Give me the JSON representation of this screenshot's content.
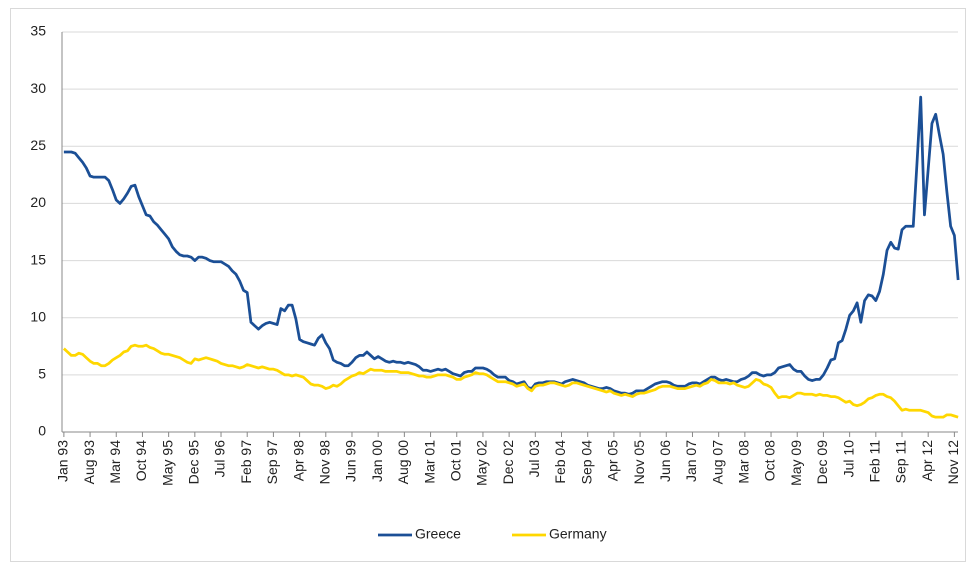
{
  "chart_data": {
    "type": "line",
    "categories": [
      "Jan 93",
      null,
      null,
      null,
      null,
      null,
      null,
      "Aug 93",
      null,
      null,
      null,
      null,
      null,
      null,
      "Mar 94",
      null,
      null,
      null,
      null,
      null,
      null,
      "Oct 94",
      null,
      null,
      null,
      null,
      null,
      null,
      "May 95",
      null,
      null,
      null,
      null,
      null,
      null,
      "Dec 95",
      null,
      null,
      null,
      null,
      null,
      null,
      "Jul 96",
      null,
      null,
      null,
      null,
      null,
      null,
      "Feb 97",
      null,
      null,
      null,
      null,
      null,
      null,
      "Sep 97",
      null,
      null,
      null,
      null,
      null,
      null,
      "Apr 98",
      null,
      null,
      null,
      null,
      null,
      null,
      "Nov 98",
      null,
      null,
      null,
      null,
      null,
      null,
      "Jun 99",
      null,
      null,
      null,
      null,
      null,
      null,
      "Jan 00",
      null,
      null,
      null,
      null,
      null,
      null,
      "Aug 00",
      null,
      null,
      null,
      null,
      null,
      null,
      "Mar 01",
      null,
      null,
      null,
      null,
      null,
      null,
      "Oct 01",
      null,
      null,
      null,
      null,
      null,
      null,
      "May 02",
      null,
      null,
      null,
      null,
      null,
      null,
      "Dec 02",
      null,
      null,
      null,
      null,
      null,
      null,
      "Jul 03",
      null,
      null,
      null,
      null,
      null,
      null,
      "Feb 04",
      null,
      null,
      null,
      null,
      null,
      null,
      "Sep 04",
      null,
      null,
      null,
      null,
      null,
      null,
      "Apr 05",
      null,
      null,
      null,
      null,
      null,
      null,
      "Nov 05",
      null,
      null,
      null,
      null,
      null,
      null,
      "Jun 06",
      null,
      null,
      null,
      null,
      null,
      null,
      "Jan 07",
      null,
      null,
      null,
      null,
      null,
      null,
      "Aug 07",
      null,
      null,
      null,
      null,
      null,
      null,
      "Mar 08",
      null,
      null,
      null,
      null,
      null,
      null,
      "Oct 08",
      null,
      null,
      null,
      null,
      null,
      null,
      "May 09",
      null,
      null,
      null,
      null,
      null,
      null,
      "Dec 09",
      null,
      null,
      null,
      null,
      null,
      null,
      "Jul 10",
      null,
      null,
      null,
      null,
      null,
      null,
      "Feb 11",
      null,
      null,
      null,
      null,
      null,
      null,
      "Sep 11",
      null,
      null,
      null,
      null,
      null,
      null,
      "Apr 12",
      null,
      null,
      null,
      null,
      null,
      null,
      "Nov 12",
      null
    ],
    "series": [
      {
        "name": "Greece",
        "color": "#1b4f96",
        "values": [
          24.5,
          24.5,
          24.5,
          24.4,
          24.0,
          23.6,
          23.1,
          22.4,
          22.3,
          22.3,
          22.3,
          22.3,
          22.0,
          21.2,
          20.3,
          20.0,
          20.4,
          20.9,
          21.5,
          21.6,
          20.6,
          19.8,
          19.0,
          18.9,
          18.4,
          18.1,
          17.7,
          17.3,
          16.9,
          16.2,
          15.8,
          15.5,
          15.4,
          15.4,
          15.3,
          15.0,
          15.3,
          15.3,
          15.2,
          15.0,
          14.9,
          14.9,
          14.9,
          14.7,
          14.5,
          14.1,
          13.8,
          13.2,
          12.4,
          12.2,
          9.6,
          9.3,
          9.0,
          9.3,
          9.5,
          9.6,
          9.5,
          9.4,
          10.8,
          10.6,
          11.1,
          11.1,
          9.9,
          8.1,
          7.9,
          7.8,
          7.7,
          7.6,
          8.2,
          8.5,
          7.8,
          7.3,
          6.3,
          6.1,
          6.0,
          5.8,
          5.8,
          6.1,
          6.5,
          6.7,
          6.7,
          7.0,
          6.7,
          6.4,
          6.6,
          6.4,
          6.2,
          6.1,
          6.2,
          6.1,
          6.1,
          6.0,
          6.1,
          6.0,
          5.9,
          5.7,
          5.4,
          5.4,
          5.3,
          5.4,
          5.5,
          5.4,
          5.5,
          5.3,
          5.1,
          5.0,
          4.9,
          5.2,
          5.3,
          5.3,
          5.6,
          5.6,
          5.6,
          5.5,
          5.3,
          5.0,
          4.8,
          4.8,
          4.8,
          4.5,
          4.4,
          4.2,
          4.3,
          4.4,
          3.9,
          3.8,
          4.2,
          4.3,
          4.3,
          4.4,
          4.4,
          4.4,
          4.3,
          4.2,
          4.4,
          4.5,
          4.6,
          4.5,
          4.4,
          4.3,
          4.1,
          4.0,
          3.9,
          3.8,
          3.8,
          3.9,
          3.8,
          3.6,
          3.5,
          3.4,
          3.4,
          3.3,
          3.4,
          3.6,
          3.6,
          3.6,
          3.8,
          4.0,
          4.2,
          4.3,
          4.4,
          4.4,
          4.3,
          4.1,
          4.0,
          4.0,
          4.0,
          4.2,
          4.3,
          4.3,
          4.2,
          4.4,
          4.6,
          4.8,
          4.8,
          4.6,
          4.5,
          4.6,
          4.5,
          4.4,
          4.4,
          4.6,
          4.7,
          4.9,
          5.2,
          5.2,
          5.0,
          4.9,
          5.0,
          5.0,
          5.2,
          5.6,
          5.7,
          5.8,
          5.9,
          5.5,
          5.3,
          5.3,
          4.9,
          4.6,
          4.5,
          4.6,
          4.6,
          5.0,
          5.6,
          6.3,
          6.4,
          7.8,
          8.0,
          9.0,
          10.2,
          10.6,
          11.3,
          9.6,
          11.5,
          12.0,
          11.9,
          11.5,
          12.3,
          13.8,
          15.9,
          16.6,
          16.1,
          16.0,
          17.7,
          18.0,
          18.0,
          18.0,
          23.5,
          29.3,
          19.0,
          23.0,
          27.0,
          27.8,
          26.0,
          24.3,
          21.0,
          18.0,
          17.2,
          13.3
        ]
      },
      {
        "name": "Germany",
        "color": "#ffd700",
        "values": [
          7.3,
          7.0,
          6.7,
          6.7,
          6.9,
          6.8,
          6.5,
          6.2,
          6.0,
          6.0,
          5.8,
          5.8,
          6.0,
          6.3,
          6.5,
          6.7,
          7.0,
          7.1,
          7.5,
          7.6,
          7.5,
          7.5,
          7.6,
          7.4,
          7.3,
          7.1,
          6.9,
          6.8,
          6.8,
          6.7,
          6.6,
          6.5,
          6.3,
          6.1,
          6.0,
          6.4,
          6.3,
          6.4,
          6.5,
          6.4,
          6.3,
          6.2,
          6.0,
          5.9,
          5.8,
          5.8,
          5.7,
          5.6,
          5.7,
          5.9,
          5.8,
          5.7,
          5.6,
          5.7,
          5.6,
          5.5,
          5.5,
          5.4,
          5.2,
          5.0,
          5.0,
          4.9,
          5.0,
          4.9,
          4.8,
          4.5,
          4.2,
          4.1,
          4.1,
          4.0,
          3.8,
          3.9,
          4.1,
          4.0,
          4.2,
          4.5,
          4.7,
          4.9,
          5.0,
          5.2,
          5.1,
          5.3,
          5.5,
          5.4,
          5.4,
          5.4,
          5.3,
          5.3,
          5.3,
          5.3,
          5.2,
          5.2,
          5.2,
          5.1,
          5.0,
          4.9,
          4.9,
          4.8,
          4.8,
          4.9,
          5.0,
          5.0,
          5.0,
          4.9,
          4.8,
          4.6,
          4.6,
          4.8,
          4.9,
          5.0,
          5.2,
          5.1,
          5.1,
          5.0,
          4.8,
          4.6,
          4.4,
          4.4,
          4.4,
          4.3,
          4.2,
          4.0,
          4.1,
          4.2,
          3.8,
          3.6,
          4.0,
          4.1,
          4.1,
          4.2,
          4.3,
          4.3,
          4.2,
          4.1,
          4.0,
          4.1,
          4.3,
          4.3,
          4.2,
          4.1,
          4.0,
          3.9,
          3.8,
          3.7,
          3.6,
          3.5,
          3.6,
          3.4,
          3.3,
          3.2,
          3.3,
          3.2,
          3.1,
          3.3,
          3.4,
          3.4,
          3.5,
          3.6,
          3.7,
          3.9,
          4.0,
          4.0,
          4.0,
          3.9,
          3.8,
          3.8,
          3.8,
          3.9,
          4.0,
          4.1,
          4.0,
          4.2,
          4.3,
          4.6,
          4.5,
          4.3,
          4.3,
          4.3,
          4.2,
          4.3,
          4.1,
          4.0,
          3.9,
          4.0,
          4.3,
          4.6,
          4.5,
          4.2,
          4.1,
          3.9,
          3.4,
          3.0,
          3.1,
          3.1,
          3.0,
          3.2,
          3.4,
          3.4,
          3.3,
          3.3,
          3.3,
          3.2,
          3.3,
          3.2,
          3.2,
          3.1,
          3.1,
          3.0,
          2.8,
          2.6,
          2.7,
          2.4,
          2.3,
          2.4,
          2.6,
          2.9,
          3.0,
          3.2,
          3.3,
          3.3,
          3.1,
          3.0,
          2.7,
          2.3,
          1.9,
          2.0,
          1.9,
          1.9,
          1.9,
          1.9,
          1.8,
          1.7,
          1.4,
          1.3,
          1.3,
          1.3,
          1.5,
          1.5,
          1.4,
          1.3
        ]
      }
    ],
    "ylim": [
      0,
      35
    ],
    "yticks": [
      0,
      5,
      10,
      15,
      20,
      25,
      30,
      35
    ],
    "grid": true,
    "legend": "bottom"
  }
}
